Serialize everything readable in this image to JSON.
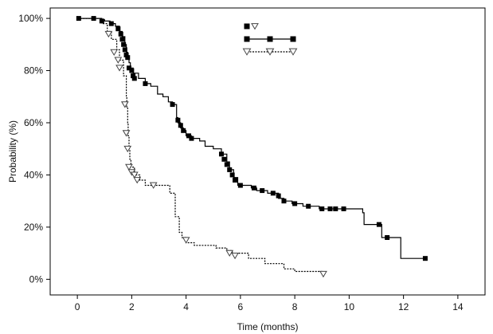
{
  "chart_data": {
    "type": "line",
    "xlabel": "Time (months)",
    "ylabel": "Probability (%)",
    "xlim": [
      -1,
      15
    ],
    "ylim": [
      -6,
      104
    ],
    "x_ticks": [
      0,
      2,
      4,
      6,
      8,
      10,
      12,
      14
    ],
    "y_ticks": [
      0,
      20,
      40,
      60,
      80,
      100
    ],
    "y_tick_labels": [
      "0%",
      "20%",
      "40%",
      "60%",
      "80%",
      "100%"
    ],
    "legend": {
      "placement": "top-center"
    },
    "series": [
      {
        "marker": "square",
        "line_style": "solid",
        "steps": [
          [
            0,
            100
          ],
          [
            0.6,
            100
          ],
          [
            0.9,
            99.5
          ],
          [
            1.0,
            99
          ],
          [
            1.2,
            98
          ],
          [
            1.4,
            97
          ],
          [
            1.55,
            95
          ],
          [
            1.65,
            93
          ],
          [
            1.75,
            90
          ],
          [
            1.8,
            87
          ],
          [
            1.85,
            85
          ],
          [
            1.9,
            83
          ],
          [
            1.95,
            81
          ],
          [
            2.05,
            79
          ],
          [
            2.25,
            77
          ],
          [
            2.5,
            75
          ],
          [
            2.7,
            74
          ],
          [
            2.95,
            71
          ],
          [
            3.15,
            70
          ],
          [
            3.35,
            68
          ],
          [
            3.5,
            67
          ],
          [
            3.65,
            62
          ],
          [
            3.7,
            60
          ],
          [
            3.8,
            58
          ],
          [
            3.9,
            57
          ],
          [
            4.0,
            55
          ],
          [
            4.2,
            54
          ],
          [
            4.5,
            53
          ],
          [
            4.7,
            51
          ],
          [
            5.0,
            50
          ],
          [
            5.3,
            48
          ],
          [
            5.5,
            45
          ],
          [
            5.6,
            42
          ],
          [
            5.75,
            39
          ],
          [
            5.9,
            36
          ],
          [
            6.4,
            35
          ],
          [
            6.6,
            34
          ],
          [
            7.0,
            33
          ],
          [
            7.4,
            31
          ],
          [
            7.6,
            30
          ],
          [
            7.9,
            29
          ],
          [
            8.3,
            28
          ],
          [
            8.9,
            27
          ],
          [
            10.5,
            25.5
          ],
          [
            10.55,
            21
          ],
          [
            11.2,
            16
          ],
          [
            11.9,
            8
          ],
          [
            12.8,
            8
          ]
        ],
        "censored": [
          [
            0.05,
            100
          ],
          [
            0.6,
            100
          ],
          [
            0.9,
            99
          ],
          [
            1.25,
            98
          ],
          [
            1.5,
            96
          ],
          [
            1.6,
            94
          ],
          [
            1.65,
            92
          ],
          [
            1.7,
            90
          ],
          [
            1.75,
            88
          ],
          [
            1.8,
            86
          ],
          [
            1.85,
            85
          ],
          [
            1.9,
            81
          ],
          [
            2.0,
            80
          ],
          [
            2.05,
            78
          ],
          [
            2.1,
            77
          ],
          [
            2.5,
            75
          ],
          [
            3.5,
            67
          ],
          [
            3.7,
            61
          ],
          [
            3.8,
            59
          ],
          [
            3.9,
            57
          ],
          [
            4.1,
            55
          ],
          [
            4.2,
            54
          ],
          [
            5.3,
            48
          ],
          [
            5.4,
            46
          ],
          [
            5.5,
            44
          ],
          [
            5.6,
            42
          ],
          [
            5.7,
            40
          ],
          [
            5.8,
            38
          ],
          [
            6.0,
            36
          ],
          [
            6.5,
            35
          ],
          [
            6.8,
            34
          ],
          [
            7.2,
            33
          ],
          [
            7.4,
            32
          ],
          [
            7.6,
            30
          ],
          [
            8.0,
            29
          ],
          [
            8.5,
            28
          ],
          [
            9.0,
            27
          ],
          [
            9.3,
            27
          ],
          [
            9.5,
            27
          ],
          [
            9.8,
            27
          ],
          [
            11.1,
            21
          ],
          [
            11.4,
            16
          ],
          [
            12.8,
            8
          ]
        ]
      },
      {
        "marker": "triangle-down",
        "line_style": "dotted",
        "steps": [
          [
            0,
            100
          ],
          [
            0.9,
            98
          ],
          [
            1.1,
            95
          ],
          [
            1.25,
            92
          ],
          [
            1.45,
            88
          ],
          [
            1.55,
            84
          ],
          [
            1.7,
            78
          ],
          [
            1.8,
            70
          ],
          [
            1.82,
            66
          ],
          [
            1.85,
            60
          ],
          [
            1.87,
            55
          ],
          [
            1.9,
            50
          ],
          [
            1.93,
            46
          ],
          [
            1.97,
            43
          ],
          [
            2.1,
            40
          ],
          [
            2.3,
            38
          ],
          [
            2.5,
            36
          ],
          [
            3.4,
            33
          ],
          [
            3.6,
            24
          ],
          [
            3.75,
            18
          ],
          [
            3.85,
            16
          ],
          [
            4.0,
            14
          ],
          [
            4.3,
            13
          ],
          [
            5.1,
            12
          ],
          [
            5.5,
            11
          ],
          [
            5.7,
            10
          ],
          [
            6.3,
            8
          ],
          [
            6.9,
            6
          ],
          [
            7.6,
            4
          ],
          [
            8.0,
            3
          ],
          [
            9.05,
            2
          ]
        ],
        "censored": [
          [
            1.15,
            94
          ],
          [
            1.35,
            87
          ],
          [
            1.5,
            84
          ],
          [
            1.55,
            81
          ],
          [
            1.75,
            67
          ],
          [
            1.8,
            56
          ],
          [
            1.85,
            50
          ],
          [
            1.9,
            43
          ],
          [
            2.0,
            41
          ],
          [
            2.1,
            40
          ],
          [
            2.2,
            38
          ],
          [
            2.8,
            36
          ],
          [
            4.0,
            15
          ],
          [
            5.6,
            10
          ],
          [
            5.8,
            9
          ],
          [
            9.05,
            2
          ]
        ]
      }
    ]
  }
}
